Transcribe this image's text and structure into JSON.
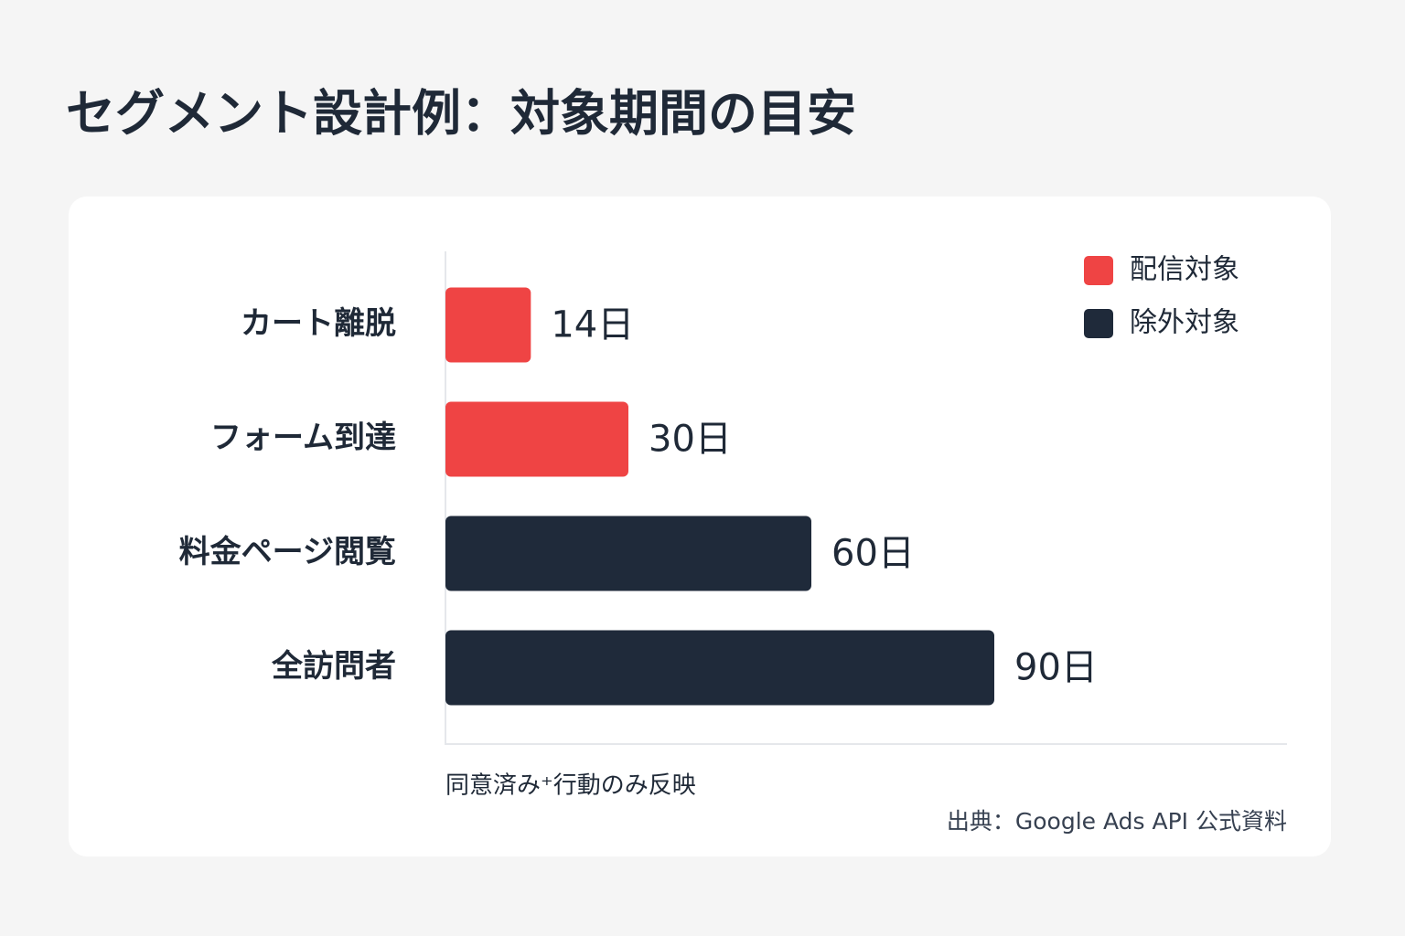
{
  "chart_data": {
    "type": "hbar",
    "title": "セグメント設計例：対象期間の目安",
    "categories": [
      "カート離脱",
      "フォーム到達",
      "料金ページ閲覧",
      "全訪問者"
    ],
    "series": [
      {
        "name": "配信対象",
        "color": "#ef4444",
        "values": [
          14,
          30,
          null,
          null
        ],
        "value_labels": [
          "14日",
          "30日",
          null,
          null
        ]
      },
      {
        "name": "除外対象",
        "color": "#1f2a3a",
        "values": [
          null,
          null,
          60,
          90
        ],
        "value_labels": [
          null,
          null,
          "60日",
          "90日"
        ]
      }
    ],
    "legend": "upper right",
    "note": "同意済み⁺行動のみ反映",
    "source": "出典：Google Ads API 公式資料"
  }
}
